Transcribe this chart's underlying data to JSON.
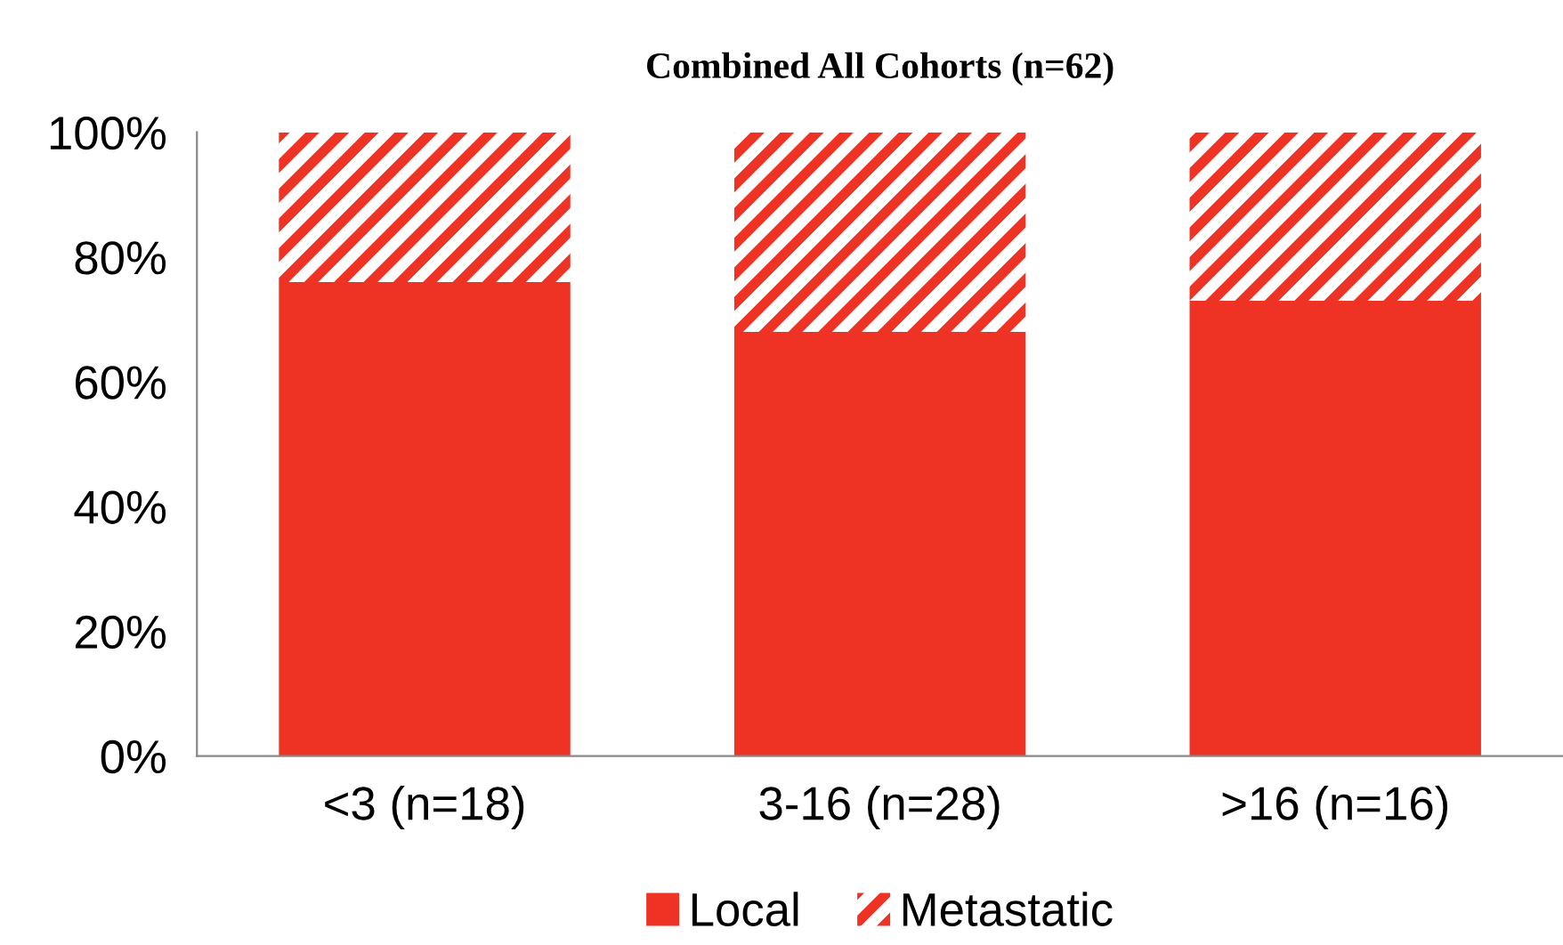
{
  "chart_data": {
    "type": "bar",
    "title": "Combined All Cohorts (n=62)",
    "categories": [
      "<3 (n=18)",
      "3-16 (n=28)",
      ">16 (n=16)"
    ],
    "stacked": true,
    "series": [
      {
        "name": "Local",
        "color": "#ee3224",
        "values": [
          76,
          68,
          73
        ]
      },
      {
        "name": "Metastatic",
        "color": "#ee3224",
        "values": [
          24,
          32,
          27
        ]
      }
    ],
    "ylim": [
      0,
      100
    ],
    "yticks": [
      {
        "value": 0,
        "label": "0%"
      },
      {
        "value": 20,
        "label": "20%"
      },
      {
        "value": 40,
        "label": "40%"
      },
      {
        "value": 60,
        "label": "60%"
      },
      {
        "value": 80,
        "label": "80%"
      },
      {
        "value": 100,
        "label": "100%"
      }
    ],
    "grid": false,
    "legend": "bottom"
  }
}
